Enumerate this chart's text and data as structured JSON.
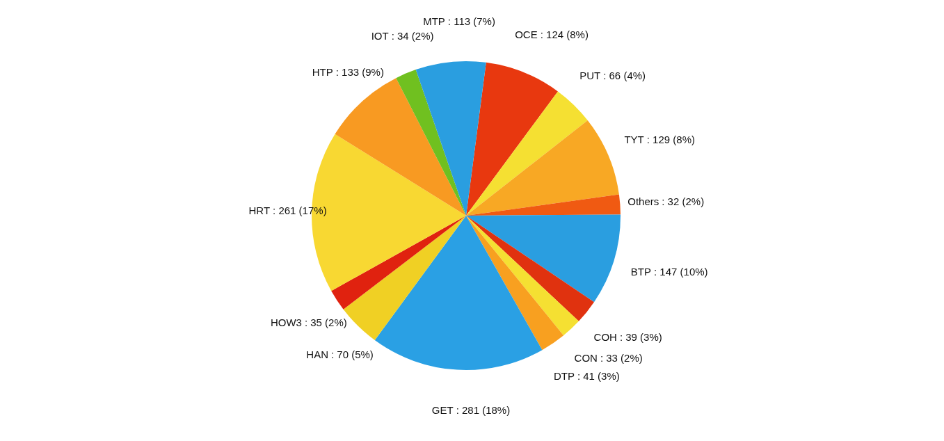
{
  "chart_data": {
    "type": "pie",
    "categories": [
      "OCE",
      "PUT",
      "TYT",
      "Others",
      "BTP",
      "COH",
      "CON",
      "DTP",
      "GET",
      "HAN",
      "HOW3",
      "HRT",
      "HTP",
      "IOT",
      "MTP"
    ],
    "values": [
      124,
      66,
      129,
      32,
      147,
      39,
      33,
      41,
      281,
      70,
      35,
      261,
      133,
      34,
      113
    ],
    "value_labels": [
      ": 124 (8%)",
      ": 66 (4%)",
      ": 129 (8%)",
      ": 32 (2%)",
      ": 147 (10%)",
      ": 39 (3%)",
      ": 33 (2%)",
      ": 41 (3%)",
      ": 281 (18%)",
      ": 70 (5%)",
      ": 35 (2%)",
      ": 261 (17%)",
      ": 133 (9%)",
      ": 34 (2%)",
      ": 113 (7%)"
    ],
    "colors": [
      "#e8380f",
      "#f5e032",
      "#f8a824",
      "#f05a12",
      "#2a9ee0",
      "#e0320f",
      "#f5e032",
      "#f8a020",
      "#2aa0e4",
      "#f0d024",
      "#e0220f",
      "#f8d832",
      "#f89a22",
      "#70c020",
      "#2a9ee0"
    ],
    "legend": false
  }
}
